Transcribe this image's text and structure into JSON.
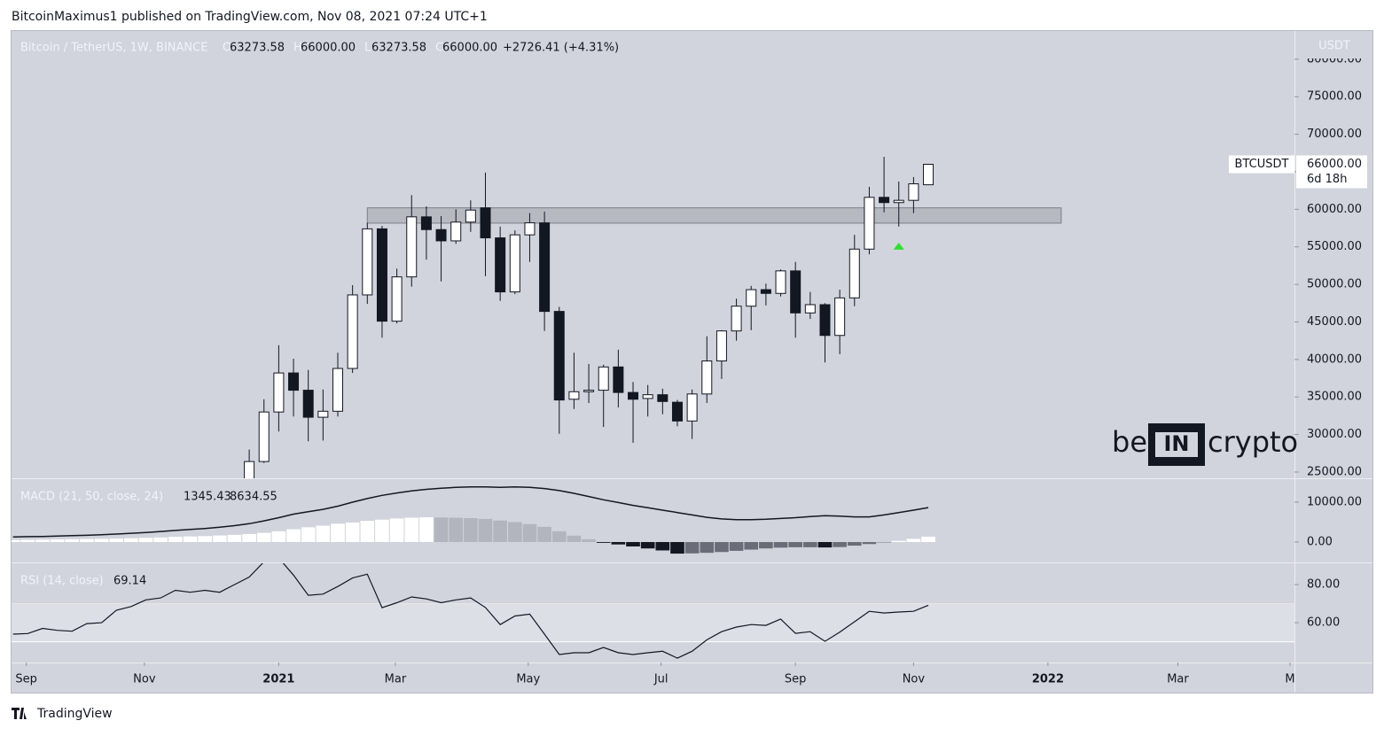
{
  "header": "BitcoinMaximus1 published on TradingView.com, Nov 08, 2021 07:24 UTC+1",
  "footer": "TradingView",
  "watermark": {
    "left": "be",
    "middle": "IN",
    "right": "crypto"
  },
  "chart_data": [
    {
      "type": "candlestick",
      "title": "Bitcoin / TetherUS, 1W, BINANCE",
      "legend": [
        {
          "key": "O",
          "value": "63273.58"
        },
        {
          "key": "H",
          "value": "66000.00"
        },
        {
          "key": "L",
          "value": "63273.58"
        },
        {
          "key": "C",
          "value": "66000.00"
        }
      ],
      "change": "+2726.41 (+4.31%)",
      "currency": "USDT",
      "last_label": {
        "symbol": "BTCUSDT",
        "price": "66000.00",
        "countdown": "6d 18h"
      },
      "x": [
        0,
        1,
        2,
        3,
        4,
        5,
        6,
        7,
        8,
        9,
        10,
        11,
        12,
        13,
        14,
        15,
        16,
        17,
        18,
        19,
        20,
        21,
        22,
        23,
        24,
        25,
        26,
        27,
        28,
        29,
        30,
        31,
        32,
        33,
        34,
        35,
        36,
        37,
        38,
        39,
        40,
        41,
        42,
        43,
        44,
        45,
        46
      ],
      "open": [
        23700,
        26400,
        33000,
        38200,
        35900,
        32300,
        33100,
        38800,
        48600,
        57400,
        45100,
        51000,
        59000,
        57300,
        55800,
        58300,
        60200,
        56200,
        49000,
        56600,
        58200,
        46400,
        34700,
        35700,
        35900,
        39000,
        35600,
        34800,
        35300,
        34300,
        31800,
        35400,
        39800,
        43800,
        47100,
        49300,
        48800,
        51800,
        46200,
        47300,
        43200,
        48200,
        54700,
        61600,
        60900,
        61200,
        63273.58
      ],
      "high": [
        28000,
        34700,
        41900,
        40100,
        38600,
        36000,
        40900,
        49900,
        58200,
        57800,
        52100,
        61900,
        60400,
        59100,
        60000,
        61200,
        64900,
        57700,
        57200,
        59500,
        59700,
        47000,
        40900,
        39400,
        39300,
        41300,
        37000,
        36600,
        36100,
        34600,
        36000,
        43100,
        43900,
        48100,
        49800,
        50100,
        52000,
        53000,
        49000,
        47500,
        49300,
        56600,
        63000,
        67000,
        63700,
        64300,
        66000
      ],
      "low": [
        21900,
        26200,
        30400,
        32400,
        29100,
        29200,
        32400,
        38200,
        47400,
        42900,
        44800,
        49700,
        53300,
        50400,
        55400,
        57000,
        51100,
        47800,
        48700,
        53000,
        43800,
        30100,
        33400,
        34200,
        31000,
        33600,
        28900,
        32400,
        32700,
        31100,
        29400,
        34200,
        37400,
        42500,
        43900,
        47200,
        48400,
        42900,
        45400,
        39600,
        40700,
        47100,
        54000,
        59600,
        57700,
        59500,
        63273.58
      ],
      "close": [
        26400,
        33000,
        38200,
        35900,
        32300,
        33100,
        38800,
        48600,
        57400,
        45100,
        51000,
        59000,
        57300,
        55800,
        58300,
        59900,
        56200,
        49000,
        56600,
        58200,
        46400,
        34600,
        35700,
        35900,
        39000,
        35600,
        34700,
        35300,
        34400,
        31800,
        35400,
        39800,
        43800,
        47100,
        49300,
        48800,
        51800,
        46200,
        47300,
        43200,
        48200,
        54700,
        61600,
        60900,
        61200,
        63400,
        66000
      ],
      "colors": {
        "up": "#ffffff",
        "down": "#131722",
        "border": "#131722"
      },
      "zone": {
        "x": [
          8,
          55
        ],
        "y": [
          58160,
          60200
        ],
        "color": "#a3a6ae"
      },
      "marker": {
        "x": 44,
        "y": 55100,
        "color": "#2ee02e"
      },
      "grid": false,
      "xlim": [
        -16.1,
        70.8
      ],
      "xticks": [
        {
          "value": -15.1,
          "label": "Sep"
        },
        {
          "value": -7.1,
          "label": "Nov"
        },
        {
          "value": 2,
          "label": "2021"
        },
        {
          "value": 9.9,
          "label": "Mar"
        },
        {
          "value": 18.9,
          "label": "May"
        },
        {
          "value": 27.9,
          "label": "Jul"
        },
        {
          "value": 37,
          "label": "Sep"
        },
        {
          "value": 45,
          "label": "Nov"
        },
        {
          "value": 54.1,
          "label": "2022"
        },
        {
          "value": 62.9,
          "label": "Mar"
        },
        {
          "value": 70.5,
          "label": "M"
        }
      ],
      "ylim": [
        24170,
        83760
      ],
      "yticks": [
        {
          "value": 80000,
          "label": "80000.00"
        },
        {
          "value": 75000,
          "label": "75000.00"
        },
        {
          "value": 70000,
          "label": "70000.00"
        },
        {
          "value": 65000,
          "label": "65000.00"
        },
        {
          "value": 60000,
          "label": "60000.00"
        },
        {
          "value": 55000,
          "label": "55000.00"
        },
        {
          "value": 50000,
          "label": "50000.00"
        },
        {
          "value": 45000,
          "label": "45000.00"
        },
        {
          "value": 40000,
          "label": "40000.00"
        },
        {
          "value": 35000,
          "label": "35000.00"
        },
        {
          "value": 30000,
          "label": "30000.00"
        },
        {
          "value": 25000,
          "label": "25000.00"
        }
      ]
    },
    {
      "type": "combo",
      "title": "MACD (21, 50, close, 24)",
      "x": [
        -16,
        -15,
        -14,
        -13,
        -12,
        -11,
        -10,
        -9,
        -8,
        -7,
        -6,
        -5,
        -4,
        -3,
        -2,
        -1,
        0,
        1,
        2,
        3,
        4,
        5,
        6,
        7,
        8,
        9,
        10,
        11,
        12,
        13,
        14,
        15,
        16,
        17,
        18,
        19,
        20,
        21,
        22,
        23,
        24,
        25,
        26,
        27,
        28,
        29,
        30,
        31,
        32,
        33,
        34,
        35,
        36,
        37,
        38,
        39,
        40,
        41,
        42,
        43,
        44,
        45,
        46
      ],
      "series": [
        {
          "kind": "bar",
          "colors": {
            "rise_pos": "#ffffff",
            "fall_pos": "#b2b5be",
            "fall_neg": "#131722",
            "rise_neg": "#6a6d78"
          },
          "values": [
            500,
            550,
            600,
            650,
            700,
            750,
            800,
            850,
            950,
            1050,
            1150,
            1300,
            1400,
            1500,
            1650,
            1800,
            2000,
            2300,
            2700,
            3200,
            3700,
            4100,
            4600,
            4900,
            5300,
            5600,
            5900,
            6100,
            6200,
            6150,
            6100,
            6000,
            5800,
            5400,
            5000,
            4500,
            3800,
            2700,
            1600,
            700,
            -200,
            -600,
            -1100,
            -1600,
            -2100,
            -2900,
            -2850,
            -2700,
            -2500,
            -2200,
            -1900,
            -1600,
            -1400,
            -1300,
            -1300,
            -1350,
            -1250,
            -900,
            -500,
            -100,
            300,
            800,
            1345.43
          ]
        },
        {
          "kind": "line",
          "color": "#131722",
          "values": [
            1300,
            1350,
            1400,
            1500,
            1600,
            1700,
            1850,
            2000,
            2200,
            2400,
            2650,
            2900,
            3150,
            3400,
            3700,
            4100,
            4600,
            5300,
            6100,
            7000,
            7600,
            8200,
            9000,
            10000,
            10900,
            11700,
            12300,
            12800,
            13200,
            13500,
            13700,
            13800,
            13800,
            13700,
            13800,
            13700,
            13400,
            12900,
            12200,
            11400,
            10600,
            9900,
            9200,
            8600,
            8000,
            7400,
            6800,
            6200,
            5800,
            5600,
            5600,
            5700,
            5900,
            6100,
            6400,
            6600,
            6500,
            6300,
            6300,
            6800,
            7400,
            8000,
            8634.55
          ]
        }
      ],
      "ylim": [
        -4880,
        15760
      ],
      "yticks": [
        {
          "value": 10000,
          "label": "10000.00"
        },
        {
          "value": 0,
          "label": "0.00"
        }
      ]
    },
    {
      "type": "line",
      "title": "RSI (14, close)",
      "color": "#131722",
      "x": [
        -16,
        -15,
        -14,
        -13,
        -12,
        -11,
        -10,
        -9,
        -8,
        -7,
        -6,
        -5,
        -4,
        -3,
        -2,
        -1,
        0,
        1,
        2,
        3,
        4,
        5,
        6,
        7,
        8,
        9,
        10,
        11,
        12,
        13,
        14,
        15,
        16,
        17,
        18,
        19,
        20,
        21,
        22,
        23,
        24,
        25,
        26,
        27,
        28,
        29,
        30,
        31,
        32,
        33,
        34,
        35,
        36,
        37,
        38,
        39,
        40,
        41,
        42,
        43,
        44,
        45,
        46
      ],
      "values": [
        54,
        54.3,
        57,
        56,
        55.5,
        59.5,
        60,
        66.5,
        68.5,
        72,
        73,
        77,
        76,
        77,
        76,
        80,
        84,
        92,
        94,
        85,
        74.4,
        75,
        79,
        83.5,
        85.5,
        67.9,
        70.5,
        73.5,
        72.5,
        70.5,
        72,
        73,
        68,
        59,
        63.5,
        64.5,
        54,
        43.3,
        44.2,
        44.2,
        47,
        44.2,
        43.3,
        44.2,
        45,
        41.4,
        45,
        51,
        55.3,
        57.7,
        59,
        58.6,
        61.9,
        54.4,
        55.3,
        50.2,
        55,
        60.5,
        66,
        65.1,
        65.6,
        66,
        69.14
      ],
      "band": [
        50,
        70
      ],
      "ylim": [
        39.1,
        91.2
      ],
      "yticks": [
        {
          "value": 80,
          "label": "80.00"
        },
        {
          "value": 60,
          "label": "60.00"
        }
      ]
    }
  ]
}
